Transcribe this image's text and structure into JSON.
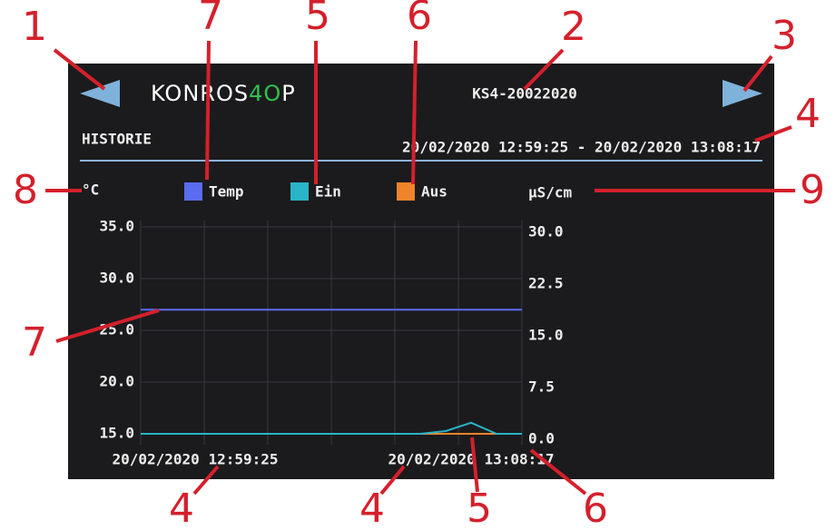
{
  "header": {
    "logo": [
      "KONROS",
      "4O",
      "P"
    ],
    "device_id": "KS4-20022020",
    "section": "HISTORIE",
    "range": "20/02/2020 12:59:25 - 20/02/2020 13:08:17"
  },
  "chart_data": {
    "type": "line",
    "y_label": "°C",
    "y2_label": "µS/cm",
    "x": [
      "20/02/2020 12:59:25",
      null,
      null,
      null,
      null,
      null,
      null,
      null,
      null,
      null,
      null,
      null,
      null,
      "20/02/2020 13:08:17",
      null,
      null
    ],
    "series": [
      {
        "name": "Temp",
        "color": "#5a6cf0",
        "values": [
          27.0,
          27.0,
          27.0,
          27.0,
          27.0,
          27.0,
          27.0,
          27.0,
          27.0,
          27.0,
          27.0,
          27.0,
          27.0,
          27.0,
          27.0,
          27.0
        ]
      },
      {
        "name": "Ein",
        "color": "#2ab4c8",
        "axis": "y2",
        "values": [
          0,
          0,
          0,
          0,
          0,
          0,
          0,
          0,
          0,
          0,
          0,
          0,
          0.4,
          1.6,
          0,
          0
        ]
      },
      {
        "name": "Aus",
        "color": "#f0842a",
        "axis": "y2",
        "values": [
          0,
          0,
          0,
          0,
          0,
          0,
          0,
          0,
          0,
          0,
          0,
          0,
          0,
          0,
          0,
          0
        ]
      }
    ],
    "ylim": [
      15,
      35
    ],
    "yticks": [
      {
        "value": 15,
        "label": "15.0"
      },
      {
        "value": 20,
        "label": "20.0"
      },
      {
        "value": 25,
        "label": "25.0"
      },
      {
        "value": 30,
        "label": "30.0"
      },
      {
        "value": 35,
        "label": "35.0"
      }
    ],
    "y2lim": [
      0,
      30
    ],
    "y2ticks": [
      {
        "value": 0,
        "label": "0.0"
      },
      {
        "value": 7.5,
        "label": "7.5"
      },
      {
        "value": 15,
        "label": "15.0"
      },
      {
        "value": 22.5,
        "label": "22.5"
      },
      {
        "value": 30,
        "label": "30.0"
      }
    ],
    "grid": true
  },
  "annotations": [
    1,
    7,
    5,
    6,
    2,
    3,
    4,
    8,
    9,
    7,
    4,
    4,
    5,
    6
  ]
}
